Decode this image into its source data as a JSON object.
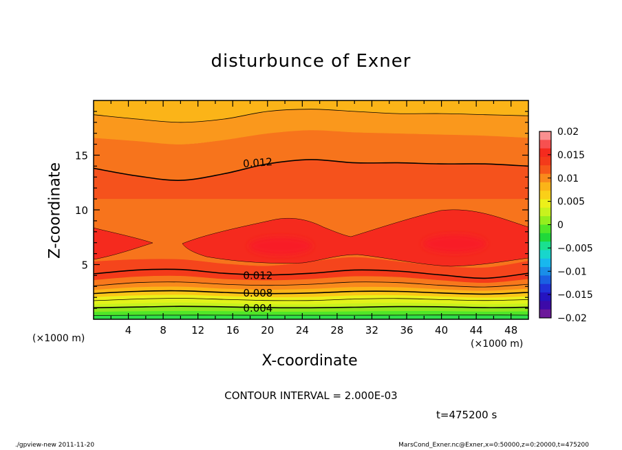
{
  "chart_data": {
    "type": "heatmap",
    "title": "disturbunce of Exner",
    "xlabel": "X-coordinate",
    "ylabel": "Z-coordinate",
    "x_unit_left": "(×1000 m)",
    "x_unit_right": "(×1000 m)",
    "xlim": [
      0,
      50
    ],
    "ylim": [
      0,
      20
    ],
    "x_ticks": [
      4,
      8,
      12,
      16,
      20,
      24,
      28,
      32,
      36,
      40,
      44,
      48
    ],
    "y_ticks": [
      5,
      10,
      15
    ],
    "colorbar": {
      "ticks": [
        "0.02",
        "0.015",
        "0.01",
        "0.005",
        "0",
        "−0.005",
        "−0.01",
        "−0.015",
        "−0.02"
      ],
      "colors_high_to_low": [
        "#fa9090",
        "#f75050",
        "#f52a1e",
        "#f43a1a",
        "#f6581a",
        "#f98a1c",
        "#fbb418",
        "#fad018",
        "#ecf01a",
        "#c8f21e",
        "#94ee1e",
        "#50e628",
        "#20d83a",
        "#1ae090",
        "#18d6cc",
        "#18b8ee",
        "#1a8ee8",
        "#1a60e2",
        "#2032d8",
        "#2414c0",
        "#3c0aa8",
        "#6c189a"
      ]
    },
    "contour_labels": [
      {
        "text": "0.012",
        "x": 18.9,
        "z": 14.3
      },
      {
        "text": "0.012",
        "x": 18.9,
        "z": 4.0
      },
      {
        "text": "0.008",
        "x": 18.9,
        "z": 2.4
      },
      {
        "text": "0.004",
        "x": 18.9,
        "z": 1.0
      }
    ],
    "contour_levels": [
      {
        "value": 0.002,
        "z": [
          0.35,
          0.37,
          0.38,
          0.38,
          0.37,
          0.37,
          0.37,
          0.38,
          0.39,
          0.39,
          0.38
        ]
      },
      {
        "value": 0.004,
        "z": [
          1.05,
          1.12,
          1.18,
          1.14,
          1.06,
          1.05,
          1.1,
          1.16,
          1.14,
          1.06,
          1.1
        ]
      },
      {
        "value": 0.006,
        "z": [
          1.7,
          1.85,
          1.92,
          1.82,
          1.72,
          1.72,
          1.85,
          1.9,
          1.8,
          1.72,
          1.8
        ]
      },
      {
        "value": 0.008,
        "z": [
          2.35,
          2.55,
          2.6,
          2.45,
          2.35,
          2.4,
          2.55,
          2.55,
          2.4,
          2.3,
          2.45
        ]
      },
      {
        "value": 0.01,
        "z": [
          3.05,
          3.35,
          3.4,
          3.2,
          3.1,
          3.2,
          3.4,
          3.35,
          3.1,
          2.95,
          3.2
        ]
      },
      {
        "value": 0.012,
        "z": [
          4.15,
          4.5,
          4.55,
          4.2,
          4.05,
          4.2,
          4.5,
          4.4,
          4.05,
          3.75,
          4.2
        ]
      },
      {
        "value": 0.012,
        "z": [
          13.8,
          13.1,
          12.7,
          13.3,
          14.2,
          14.6,
          14.3,
          14.3,
          14.2,
          14.2,
          14.0
        ]
      },
      {
        "value": 0.01,
        "z": [
          18.7,
          18.3,
          18.0,
          18.3,
          19.0,
          19.2,
          19.0,
          18.8,
          18.8,
          18.7,
          18.6
        ]
      }
    ],
    "maxima": [
      {
        "x": 21.5,
        "z": 6.7
      },
      {
        "x": 41.5,
        "z": 6.9
      }
    ]
  },
  "contour_interval": "CONTOUR INTERVAL = 2.000E-03",
  "time_label": "t=475200 s",
  "footer_left": "./gpview-new  2011-11-20",
  "footer_right": "MarsCond_Exner.nc@Exner,x=0:50000,z=0:20000,t=475200"
}
